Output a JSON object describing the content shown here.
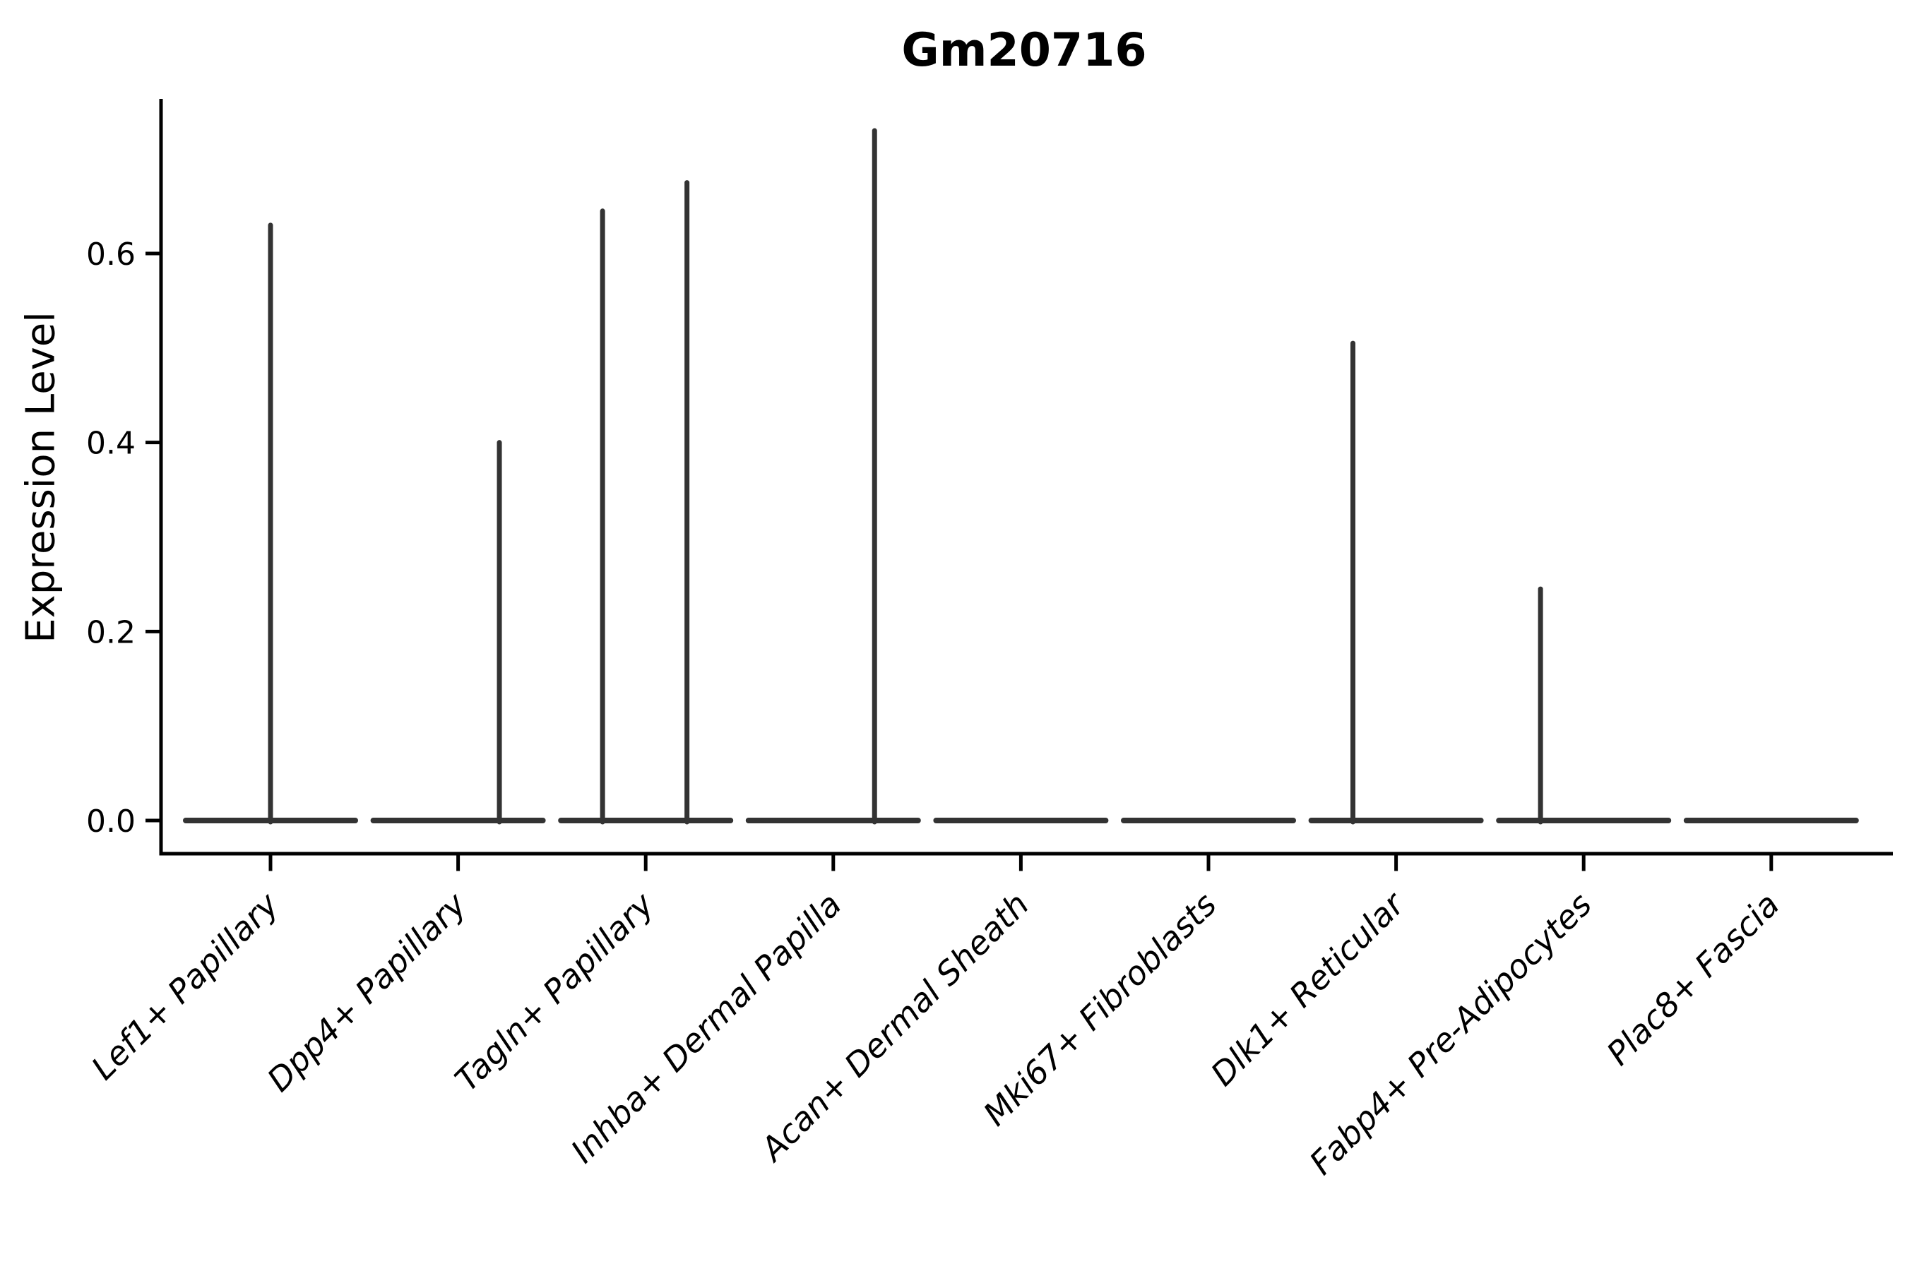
{
  "chart_data": {
    "type": "violin",
    "title": "Gm20716",
    "ylabel": "Expression Level",
    "xlabel": "",
    "grid": false,
    "legend": "none",
    "background_color": "#ffffff",
    "violin_color": "#333333",
    "axis_color": "#000000",
    "ytick_labels": [
      "0.0",
      "0.2",
      "0.4",
      "0.6"
    ],
    "ytick_values": [
      0.0,
      0.2,
      0.4,
      0.6
    ],
    "ylim": [
      0.0,
      0.76
    ],
    "categories": [
      "Lef1+ Papillary",
      "Dpp4+ Papillary",
      "Tagln+ Papillary",
      "Inhba+ Dermal Papilla",
      "Acan+ Dermal Sheath",
      "Mki67+ Fibroblasts",
      "Dlk1+ Reticular",
      "Fabp4+ Pre-Adipocytes",
      "Plac8+ Fascia"
    ],
    "violins": [
      {
        "category": "Lef1+ Papillary",
        "baseline_value": 0.0,
        "max_value": 0.63,
        "spikes": [
          {
            "offset_frac": 0.0,
            "value": 0.63
          }
        ]
      },
      {
        "category": "Dpp4+ Papillary",
        "baseline_value": 0.0,
        "max_value": 0.4,
        "spikes": [
          {
            "offset_frac": 0.22,
            "value": 0.4
          }
        ]
      },
      {
        "category": "Tagln+ Papillary",
        "baseline_value": 0.0,
        "max_value": 0.675,
        "spikes": [
          {
            "offset_frac": -0.23,
            "value": 0.645
          },
          {
            "offset_frac": 0.22,
            "value": 0.675
          }
        ]
      },
      {
        "category": "Inhba+ Dermal Papilla",
        "baseline_value": 0.0,
        "max_value": 0.73,
        "spikes": [
          {
            "offset_frac": 0.22,
            "value": 0.73
          }
        ]
      },
      {
        "category": "Acan+ Dermal Sheath",
        "baseline_value": 0.0,
        "max_value": 0.0,
        "spikes": []
      },
      {
        "category": "Mki67+ Fibroblasts",
        "baseline_value": 0.0,
        "max_value": 0.0,
        "spikes": []
      },
      {
        "category": "Dlk1+ Reticular",
        "baseline_value": 0.0,
        "max_value": 0.505,
        "spikes": [
          {
            "offset_frac": -0.23,
            "value": 0.505
          }
        ]
      },
      {
        "category": "Fabp4+ Pre-Adipocytes",
        "baseline_value": 0.0,
        "max_value": 0.245,
        "spikes": [
          {
            "offset_frac": -0.23,
            "value": 0.245
          }
        ]
      },
      {
        "category": "Plac8+ Fascia",
        "baseline_value": 0.0,
        "max_value": 0.0,
        "spikes": []
      }
    ]
  }
}
